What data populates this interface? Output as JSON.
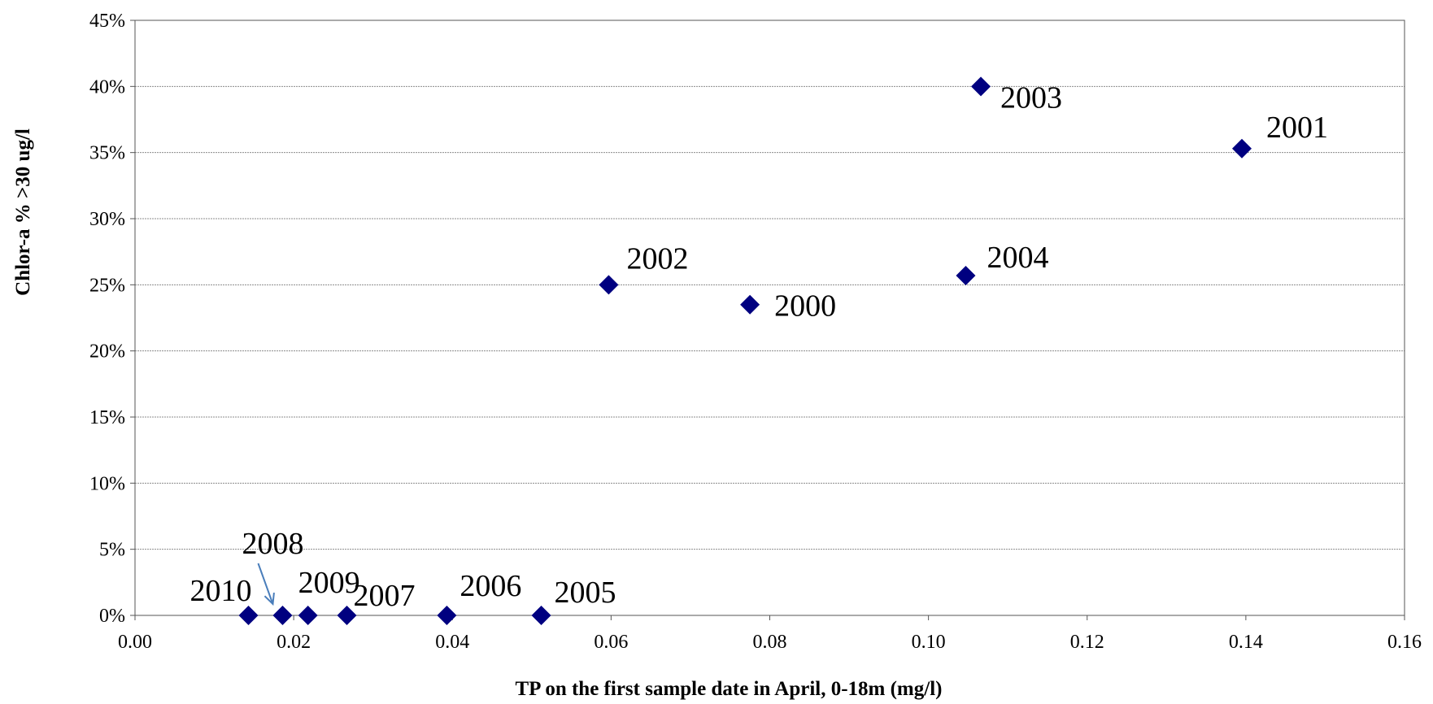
{
  "chart_data": {
    "type": "scatter",
    "title": "",
    "xlabel": "TP on the first sample date in April, 0-18m (mg/l)",
    "ylabel": "Chlor-a % >30 ug/l",
    "xlim": [
      0,
      0.16
    ],
    "ylim": [
      0,
      45
    ],
    "x_ticks": [
      "0.00",
      "0.02",
      "0.04",
      "0.06",
      "0.08",
      "0.10",
      "0.12",
      "0.14",
      "0.16"
    ],
    "y_ticks": [
      "0%",
      "5%",
      "10%",
      "15%",
      "20%",
      "25%",
      "30%",
      "35%",
      "40%",
      "45%"
    ],
    "grid": "horizontal",
    "marker": "diamond",
    "color": "#000080",
    "arrow_color": "#4a7ebb",
    "points": [
      {
        "label": "2000",
        "x": 0.0775,
        "y": 23.5
      },
      {
        "label": "2001",
        "x": 0.1395,
        "y": 35.3
      },
      {
        "label": "2002",
        "x": 0.0597,
        "y": 25.0
      },
      {
        "label": "2003",
        "x": 0.1066,
        "y": 40.0
      },
      {
        "label": "2004",
        "x": 0.1047,
        "y": 25.7
      },
      {
        "label": "2005",
        "x": 0.0512,
        "y": 0
      },
      {
        "label": "2006",
        "x": 0.0393,
        "y": 0
      },
      {
        "label": "2007",
        "x": 0.0267,
        "y": 0
      },
      {
        "label": "2008",
        "x": 0.0186,
        "y": 0
      },
      {
        "label": "2009",
        "x": 0.0218,
        "y": 0
      },
      {
        "label": "2010",
        "x": 0.0143,
        "y": 0
      }
    ]
  }
}
